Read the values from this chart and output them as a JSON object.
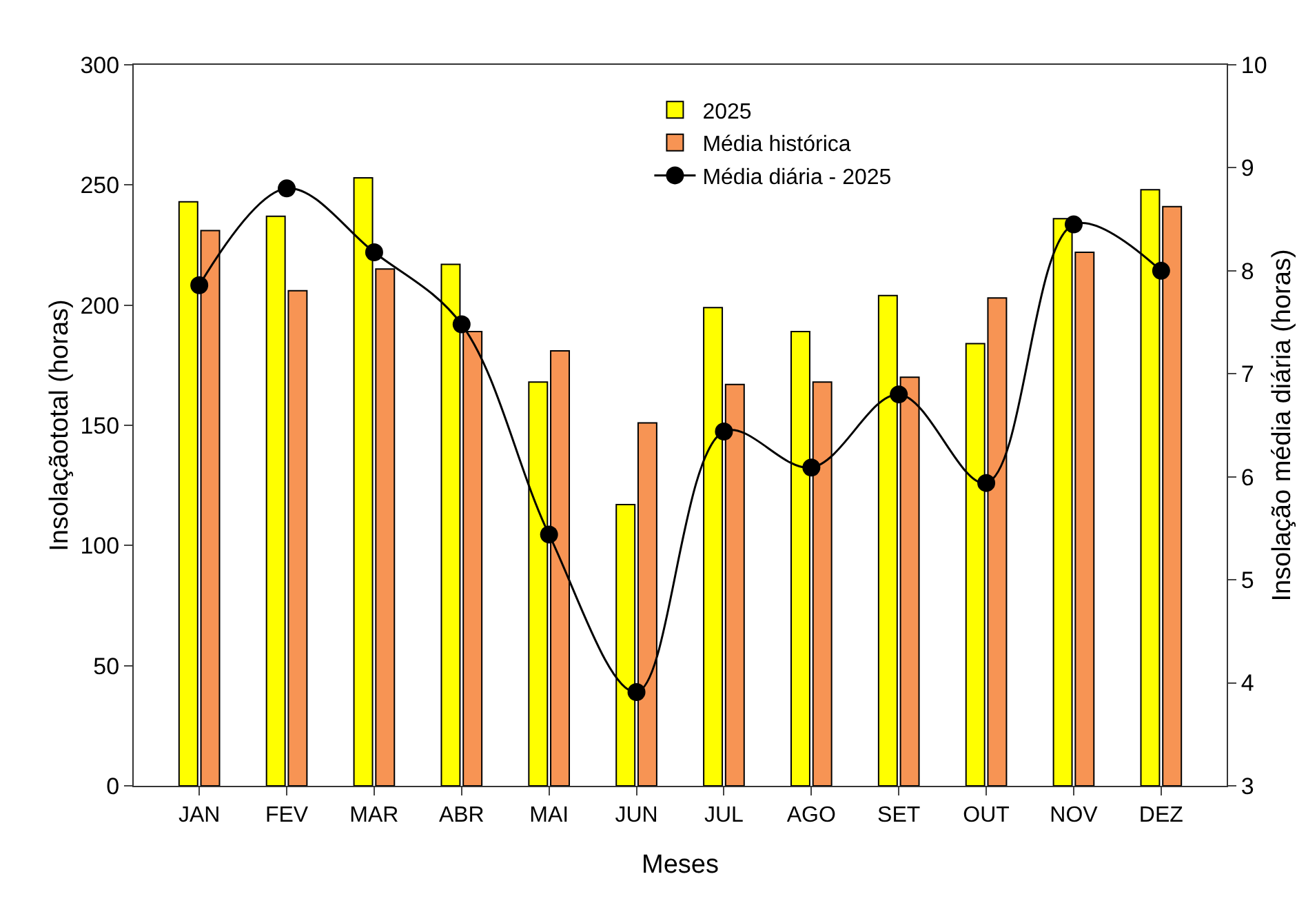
{
  "chart_data": {
    "type": "bar",
    "xlabel": "Meses",
    "ylabel": "Insolaçãototal (horas)",
    "y2label": "Insolação média diária (horas)",
    "categories": [
      "JAN",
      "FEV",
      "MAR",
      "ABR",
      "MAI",
      "JUN",
      "JUL",
      "AGO",
      "SET",
      "OUT",
      "NOV",
      "DEZ"
    ],
    "series": [
      {
        "name": "2025",
        "color": "#ffff00",
        "values": [
          243,
          237,
          253,
          217,
          168,
          117,
          199,
          189,
          204,
          184,
          236,
          248
        ]
      },
      {
        "name": "Média histórica",
        "color": "#f79454",
        "values": [
          231,
          206,
          215,
          189,
          181,
          151,
          167,
          168,
          170,
          203,
          222,
          241
        ]
      },
      {
        "name": "Média diária - 2025",
        "type": "line",
        "axis": "y2",
        "color": "#000000",
        "marker": "circle",
        "line_style": "solid",
        "values": [
          7.86,
          8.8,
          8.18,
          7.48,
          5.44,
          3.91,
          6.44,
          6.09,
          6.8,
          5.94,
          8.45,
          8.0
        ]
      }
    ],
    "ylim": [
      0,
      300
    ],
    "yticks": [
      0,
      50,
      100,
      150,
      200,
      250,
      300
    ],
    "y2lim": [
      3,
      10
    ],
    "y2ticks": [
      3,
      4,
      5,
      6,
      7,
      8,
      9,
      10
    ],
    "grid": false,
    "legend": "top"
  }
}
